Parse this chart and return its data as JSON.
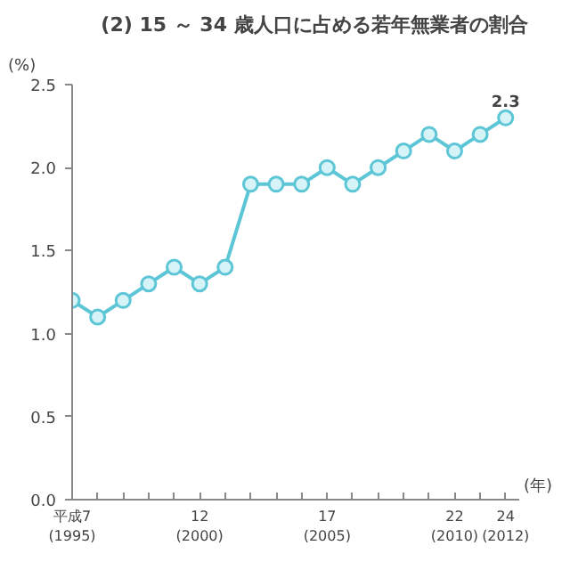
{
  "chart_data": {
    "type": "line",
    "title": "(2) 15 ～ 34 歳人口に占める若年無業者の割合",
    "xlabel": "(年)",
    "ylabel": "(%)",
    "categories": [
      "平成7\n(1995)",
      null,
      null,
      null,
      null,
      "12\n(2000)",
      null,
      null,
      null,
      null,
      "17\n(2005)",
      null,
      null,
      null,
      null,
      "22\n(2010)",
      null,
      "24\n(2012)"
    ],
    "series": [
      {
        "color": "#5cc6d6",
        "values": [
          1.2,
          1.1,
          1.2,
          1.3,
          1.4,
          1.3,
          1.4,
          1.9,
          1.9,
          1.9,
          2.0,
          1.9,
          2.0,
          2.1,
          2.2,
          2.1,
          2.2,
          2.3
        ]
      }
    ],
    "ylim": [
      0,
      2.5
    ],
    "yticks": [
      {
        "value": 0,
        "label": "0.0"
      },
      {
        "value": 0.5,
        "label": "0.5"
      },
      {
        "value": 1,
        "label": "1.0"
      },
      {
        "value": 1.5,
        "label": "1.5"
      },
      {
        "value": 2,
        "label": "2.0"
      },
      {
        "value": 2.5,
        "label": "2.5"
      }
    ],
    "annotations": [
      {
        "text": "2.3",
        "x": "24\n(2012)",
        "y": 2.3
      }
    ],
    "marker": "circle",
    "line_style": "solid"
  }
}
